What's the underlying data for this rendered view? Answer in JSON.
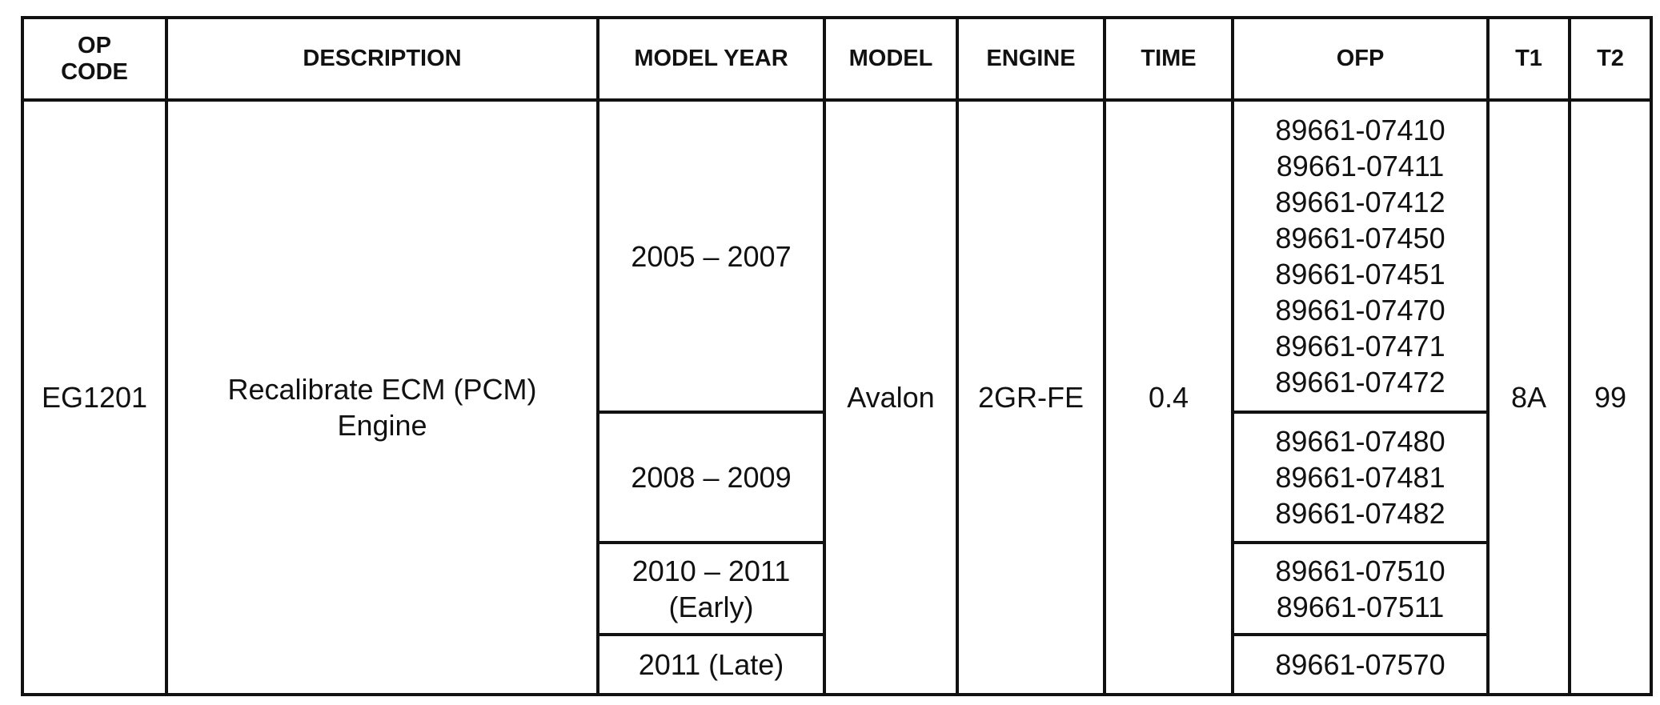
{
  "headers": [
    "OP CODE",
    "DESCRIPTION",
    "MODEL YEAR",
    "MODEL",
    "ENGINE",
    "TIME",
    "OFP",
    "T1",
    "T2"
  ],
  "header_op_code_lines": [
    "OP",
    "CODE"
  ],
  "row": {
    "op_code": "EG1201",
    "description_lines": [
      "Recalibrate ECM (PCM)",
      "Engine"
    ],
    "model": "Avalon",
    "engine": "2GR-FE",
    "time": "0.4",
    "t1": "8A",
    "t2": "99",
    "groups": [
      {
        "model_year": [
          "2005 – 2007"
        ],
        "ofp": [
          "89661-07410",
          "89661-07411",
          "89661-07412",
          "89661-07450",
          "89661-07451",
          "89661-07470",
          "89661-07471",
          "89661-07472"
        ]
      },
      {
        "model_year": [
          "2008 – 2009"
        ],
        "ofp": [
          "89661-07480",
          "89661-07481",
          "89661-07482"
        ]
      },
      {
        "model_year": [
          "2010 – 2011",
          "(Early)"
        ],
        "ofp": [
          "89661-07510",
          "89661-07511"
        ]
      },
      {
        "model_year": [
          "2011 (Late)"
        ],
        "ofp": [
          "89661-07570"
        ]
      }
    ]
  }
}
